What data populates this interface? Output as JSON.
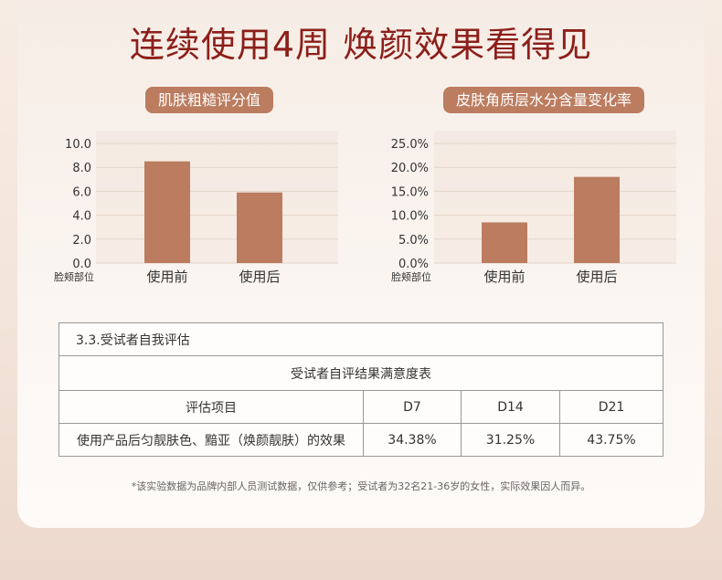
{
  "page": {
    "title": "连续使用4周 焕颜效果看得见"
  },
  "chart_data": [
    {
      "type": "bar",
      "title": "肌肤粗糙评分值",
      "categories": [
        "使用前",
        "使用后"
      ],
      "values": [
        8.5,
        5.9
      ],
      "ylim": [
        0,
        10
      ],
      "yticks": [
        "10.0",
        "8.0",
        "6.0",
        "4.0",
        "2.0",
        "0.0"
      ],
      "xlabel": "脸颊部位",
      "grid": true,
      "color": "#bb7c5f"
    },
    {
      "type": "bar",
      "title": "皮肤角质层水分含量变化率",
      "categories": [
        "使用前",
        "使用后"
      ],
      "values": [
        8.5,
        18.0
      ],
      "ylim": [
        0,
        25
      ],
      "yticks": [
        "25.0%",
        "20.0%",
        "15.0%",
        "10.0%",
        "5.0%",
        "0.0%"
      ],
      "xlabel": "脸颊部位",
      "grid": true,
      "color": "#bb7c5f"
    }
  ],
  "table": {
    "section_title": "3.3.受试者自我评估",
    "table_title": "受试者自评结果满意度表",
    "headers": [
      "评估项目",
      "D7",
      "D14",
      "D21"
    ],
    "row": [
      "使用产品后匀靓肤色、黯亚（焕颜靓肤）的效果",
      "34.38%",
      "31.25%",
      "43.75%"
    ]
  },
  "footnote": "*该实验数据为品牌内部人员测试数据，仅供参考；受试者为32名21-36岁的女性，实际效果因人而异。"
}
